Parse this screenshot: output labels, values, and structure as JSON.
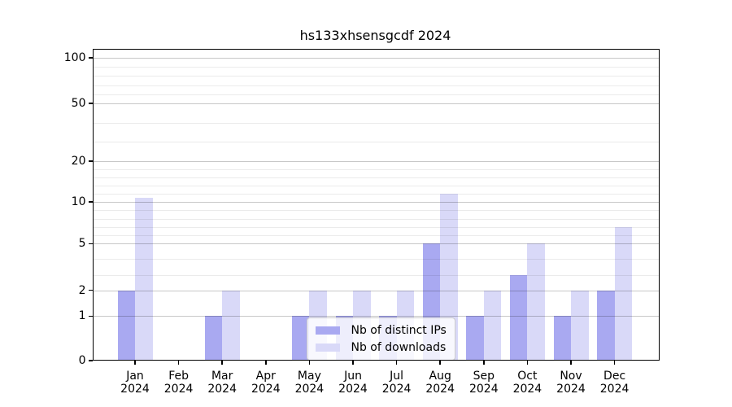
{
  "chart_data": {
    "type": "bar",
    "title": "hs133xhsensgcdf 2024",
    "months": [
      "Jan",
      "Feb",
      "Mar",
      "Apr",
      "May",
      "Jun",
      "Jul",
      "Aug",
      "Sep",
      "Oct",
      "Nov",
      "Dec"
    ],
    "year": "2024",
    "categories": [
      "Jan 2024",
      "Feb 2024",
      "Mar 2024",
      "Apr 2024",
      "May 2024",
      "Jun 2024",
      "Jul 2024",
      "Aug 2024",
      "Sep 2024",
      "Oct 2024",
      "Nov 2024",
      "Dec 2024"
    ],
    "series": [
      {
        "name": "Nb of distinct IPs",
        "color": "#a9a9f1",
        "values": [
          2,
          0,
          1,
          0,
          1,
          1,
          1,
          5,
          1,
          3,
          1,
          2
        ]
      },
      {
        "name": "Nb of downloads",
        "color": "#d9d9f8",
        "values": [
          11,
          0,
          2,
          0,
          2,
          2,
          2,
          12,
          2,
          5,
          2,
          7
        ]
      }
    ],
    "y_ticks": [
      0,
      1,
      2,
      5,
      10,
      20,
      50,
      100
    ],
    "y_tick_labels": [
      "0",
      "1",
      "2",
      "5",
      "10",
      "20",
      "50",
      "100"
    ],
    "y_minor_ticks": [
      3,
      4,
      6,
      7,
      8,
      9,
      12,
      14,
      16,
      18,
      30,
      40,
      60,
      70,
      80,
      90
    ],
    "scale": "piecewise-linear-between-ticks",
    "ylim": [
      0,
      110
    ],
    "grid": true,
    "legend_position": "lower center",
    "colors": {
      "bar_distinct_ips": "#a9a9f1",
      "bar_downloads": "#d9d9f8",
      "grid_major": "#c6c6c6",
      "grid_minor": "#ececec",
      "axis": "#000000",
      "background": "#ffffff"
    }
  }
}
